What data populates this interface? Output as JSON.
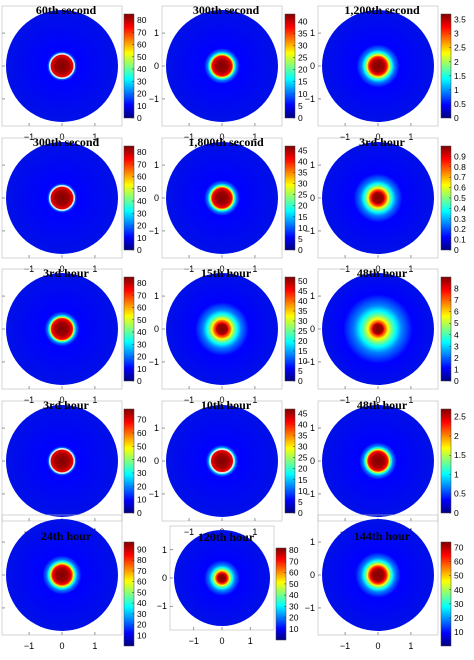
{
  "figure": {
    "rows": 5,
    "cols": 3,
    "colormap": [
      "#00007f",
      "#0000ff",
      "#007fff",
      "#00ffff",
      "#7fff7f",
      "#ffff00",
      "#ff7f00",
      "#ff0000",
      "#7f0000"
    ]
  },
  "chart_data": [
    {
      "type": "heatmap",
      "title": "60th second",
      "xlim": [
        -1.7,
        1.7
      ],
      "ylim": [
        -1.7,
        1.7
      ],
      "x_ticks": [
        "−1",
        "0",
        "1"
      ],
      "y_ticks": [
        "1",
        "0",
        "−1"
      ],
      "clim": [
        0,
        85
      ],
      "colorbar_ticks": [
        "0",
        "10",
        "20",
        "30",
        "40",
        "50",
        "60",
        "70",
        "80"
      ],
      "blob": {
        "radius": 0.37,
        "edge": 0.02,
        "peak": 1.0,
        "ring": true
      }
    },
    {
      "type": "heatmap",
      "title": "300th second",
      "xlim": [
        -1.7,
        1.7
      ],
      "ylim": [
        -1.7,
        1.7
      ],
      "x_ticks": [
        "−1",
        "0",
        "1"
      ],
      "y_ticks": [
        "1",
        "0",
        "−1"
      ],
      "clim": [
        0,
        43
      ],
      "colorbar_ticks": [
        "0",
        "5",
        "10",
        "15",
        "20",
        "25",
        "30",
        "35",
        "40"
      ],
      "blob": {
        "radius": 0.34,
        "edge": 0.07,
        "peak": 1.0,
        "ring": false
      }
    },
    {
      "type": "heatmap",
      "title": "1,200th second",
      "xlim": [
        -1.7,
        1.7
      ],
      "ylim": [
        -1.7,
        1.7
      ],
      "x_ticks": [
        "−1",
        "0",
        "1"
      ],
      "y_ticks": [
        "1",
        "0",
        "−1"
      ],
      "clim": [
        0,
        3.7
      ],
      "colorbar_ticks": [
        "0",
        "0.5",
        "1",
        "1.5",
        "2",
        "2.5",
        "3",
        "3.5"
      ],
      "blob": {
        "radius": 0.33,
        "edge": 0.12,
        "peak": 1.0,
        "ring": false
      }
    },
    {
      "type": "heatmap",
      "title": "300th second",
      "xlim": [
        -1.7,
        1.7
      ],
      "ylim": [
        -1.7,
        1.7
      ],
      "x_ticks": [
        "−1",
        "0",
        "1"
      ],
      "y_ticks": [
        "1",
        "0",
        "−1"
      ],
      "clim": [
        0,
        85
      ],
      "colorbar_ticks": [
        "0",
        "10",
        "20",
        "30",
        "40",
        "50",
        "60",
        "70",
        "80"
      ],
      "blob": {
        "radius": 0.37,
        "edge": 0.02,
        "peak": 1.0,
        "ring": true
      }
    },
    {
      "type": "heatmap",
      "title": "1,800th second",
      "xlim": [
        -1.7,
        1.7
      ],
      "ylim": [
        -1.7,
        1.7
      ],
      "x_ticks": [
        "−1",
        "0",
        "1"
      ],
      "y_ticks": [
        "1",
        "0",
        "−1"
      ],
      "clim": [
        0,
        47
      ],
      "colorbar_ticks": [
        "0",
        "5",
        "10",
        "15",
        "20",
        "25",
        "30",
        "35",
        "40",
        "45"
      ],
      "blob": {
        "radius": 0.34,
        "edge": 0.07,
        "peak": 1.0,
        "ring": false
      }
    },
    {
      "type": "heatmap",
      "title": "3rd hour",
      "xlim": [
        -1.7,
        1.7
      ],
      "ylim": [
        -1.7,
        1.7
      ],
      "x_ticks": [
        "−1",
        "0",
        "1"
      ],
      "y_ticks": [
        "1",
        "0",
        "−1"
      ],
      "clim": [
        0,
        1.0
      ],
      "colorbar_ticks": [
        "0",
        "0.1",
        "0.2",
        "0.3",
        "0.4",
        "0.5",
        "0.6",
        "0.7",
        "0.8",
        "0.9"
      ],
      "blob": {
        "radius": 0.3,
        "edge": 0.17,
        "peak": 1.0,
        "ring": false
      }
    },
    {
      "type": "heatmap",
      "title": "3rd hour",
      "xlim": [
        -1.7,
        1.7
      ],
      "ylim": [
        -1.7,
        1.7
      ],
      "x_ticks": [
        "−1",
        "0",
        "1"
      ],
      "y_ticks": [
        "1",
        "0",
        "−1"
      ],
      "clim": [
        0,
        85
      ],
      "colorbar_ticks": [
        "0",
        "10",
        "20",
        "30",
        "40",
        "50",
        "60",
        "70",
        "80"
      ],
      "blob": {
        "radius": 0.35,
        "edge": 0.06,
        "peak": 1.0,
        "ring": false
      }
    },
    {
      "type": "heatmap",
      "title": "15th hour",
      "xlim": [
        -1.7,
        1.7
      ],
      "ylim": [
        -1.7,
        1.7
      ],
      "x_ticks": [
        "−1",
        "0",
        "1"
      ],
      "y_ticks": [
        "1",
        "0",
        "−1"
      ],
      "clim": [
        0,
        52
      ],
      "colorbar_ticks": [
        "0",
        "5",
        "10",
        "15",
        "20",
        "25",
        "30",
        "35",
        "40",
        "45",
        "50"
      ],
      "blob": {
        "radius": 0.3,
        "edge": 0.2,
        "peak": 1.0,
        "ring": false
      }
    },
    {
      "type": "heatmap",
      "title": "48th hour",
      "xlim": [
        -1.7,
        1.7
      ],
      "ylim": [
        -1.7,
        1.7
      ],
      "x_ticks": [
        "−1",
        "0",
        "1"
      ],
      "y_ticks": [
        "1",
        "0",
        "−1"
      ],
      "clim": [
        0,
        9
      ],
      "colorbar_ticks": [
        "0",
        "1",
        "2",
        "3",
        "4",
        "5",
        "6",
        "7",
        "8"
      ],
      "blob": {
        "radius": 0.3,
        "edge": 0.3,
        "peak": 1.0,
        "ring": false
      }
    },
    {
      "type": "heatmap",
      "title": "3rd hour",
      "xlim": [
        -1.7,
        1.7
      ],
      "ylim": [
        -1.7,
        1.7
      ],
      "x_ticks": [
        "−1",
        "0",
        "1"
      ],
      "y_ticks": [
        "1",
        "0",
        "−1"
      ],
      "clim": [
        0,
        78
      ],
      "colorbar_ticks": [
        "0",
        "10",
        "20",
        "30",
        "40",
        "50",
        "60",
        "70"
      ],
      "blob": {
        "radius": 0.37,
        "edge": 0.02,
        "peak": 1.0,
        "ring": true
      }
    },
    {
      "type": "heatmap",
      "title": "10th hour",
      "xlim": [
        -1.7,
        1.7
      ],
      "ylim": [
        -1.7,
        1.7
      ],
      "x_ticks": [
        "−1",
        "0",
        "1"
      ],
      "y_ticks": [
        "1",
        "0",
        "−1"
      ],
      "clim": [
        0,
        47
      ],
      "colorbar_ticks": [
        "0",
        "5",
        "10",
        "15",
        "20",
        "25",
        "30",
        "35",
        "40",
        "45"
      ],
      "blob": {
        "radius": 0.36,
        "edge": 0.04,
        "peak": 1.0,
        "ring": true
      }
    },
    {
      "type": "heatmap",
      "title": "48th hour",
      "xlim": [
        -1.7,
        1.7
      ],
      "ylim": [
        -1.7,
        1.7
      ],
      "x_ticks": [
        "−1",
        "0",
        "1"
      ],
      "y_ticks": [
        "1",
        "0",
        "−1"
      ],
      "clim": [
        0,
        2.7
      ],
      "colorbar_ticks": [
        "0",
        "0.5",
        "1",
        "1.5",
        "2",
        "2.5"
      ],
      "blob": {
        "radius": 0.34,
        "edge": 0.08,
        "peak": 1.0,
        "ring": false
      }
    },
    {
      "type": "heatmap",
      "title": "24th hour",
      "xlim": [
        -1.7,
        1.7
      ],
      "ylim": [
        -1.7,
        1.7
      ],
      "x_ticks": [
        "−1",
        "0",
        "1"
      ],
      "y_ticks": [
        "1",
        "0",
        "−1"
      ],
      "clim": [
        0,
        97
      ],
      "colorbar_ticks": [
        "10",
        "20",
        "30",
        "40",
        "50",
        "60",
        "70",
        "80",
        "90"
      ],
      "blob": {
        "radius": 0.34,
        "edge": 0.09,
        "peak": 1.0,
        "ring": false
      }
    },
    {
      "type": "heatmap",
      "title": "120th hour",
      "xlim": [
        -1.7,
        1.7
      ],
      "ylim": [
        -1.7,
        1.7
      ],
      "x_ticks": [
        "−1",
        "0",
        "1"
      ],
      "y_ticks": [
        "1",
        "0",
        "−1"
      ],
      "clim": [
        0,
        82
      ],
      "colorbar_ticks": [
        "10",
        "20",
        "30",
        "40",
        "50",
        "60",
        "70",
        "80"
      ],
      "blob": {
        "radius": 0.26,
        "edge": 0.14,
        "peak": 1.0,
        "ring": false
      }
    },
    {
      "type": "heatmap",
      "title": "144th hour",
      "xlim": [
        -1.7,
        1.7
      ],
      "ylim": [
        -1.7,
        1.7
      ],
      "x_ticks": [
        "−1",
        "0",
        "1"
      ],
      "y_ticks": [
        "1",
        "0",
        "−1"
      ],
      "clim": [
        0,
        74
      ],
      "colorbar_ticks": [
        "10",
        "20",
        "30",
        "40",
        "50",
        "60",
        "70"
      ],
      "blob": {
        "radius": 0.32,
        "edge": 0.14,
        "peak": 1.0,
        "ring": false
      }
    }
  ]
}
